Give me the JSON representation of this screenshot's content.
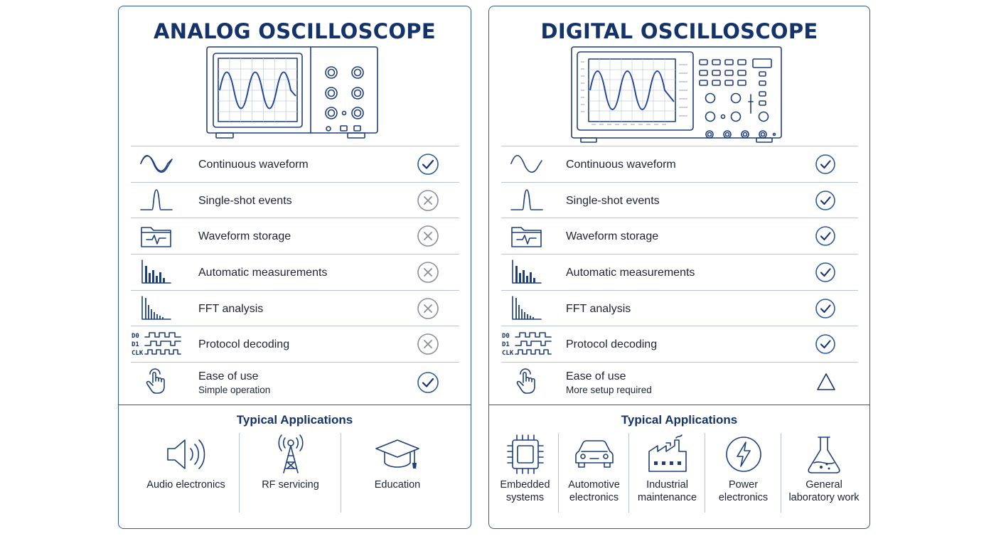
{
  "analog": {
    "title": "ANALOG OSCILLOSCOPE",
    "features": [
      {
        "label": "Continuous waveform",
        "sub": "",
        "status": "check",
        "icon": "sine-wave-icon"
      },
      {
        "label": "Single-shot events",
        "sub": "",
        "status": "cross",
        "icon": "single-pulse-icon"
      },
      {
        "label": "Waveform storage",
        "sub": "",
        "status": "cross",
        "icon": "folder-waveform-icon"
      },
      {
        "label": "Automatic measurements",
        "sub": "",
        "status": "cross",
        "icon": "bar-chart-icon"
      },
      {
        "label": "FFT analysis",
        "sub": "",
        "status": "cross",
        "icon": "spectrum-icon"
      },
      {
        "label": "Protocol decoding",
        "sub": "",
        "status": "cross",
        "icon": "digital-signals-icon"
      },
      {
        "label": "Ease of use",
        "sub": "Simple operation",
        "status": "check",
        "icon": "touch-hand-icon"
      }
    ],
    "apps_title": "Typical Applications",
    "apps": [
      {
        "label": "Audio electronics",
        "icon": "speaker-icon"
      },
      {
        "label": "RF servicing",
        "icon": "antenna-tower-icon"
      },
      {
        "label": "Education",
        "icon": "graduation-cap-icon"
      }
    ]
  },
  "digital": {
    "title": "DIGITAL OSCILLOSCOPE",
    "features": [
      {
        "label": "Continuous waveform",
        "sub": "",
        "status": "check",
        "icon": "sine-wave-icon"
      },
      {
        "label": "Single-shot events",
        "sub": "",
        "status": "check",
        "icon": "single-pulse-icon"
      },
      {
        "label": "Waveform storage",
        "sub": "",
        "status": "check",
        "icon": "folder-waveform-icon"
      },
      {
        "label": "Automatic measurements",
        "sub": "",
        "status": "check",
        "icon": "bar-chart-icon"
      },
      {
        "label": "FFT analysis",
        "sub": "",
        "status": "check",
        "icon": "spectrum-icon"
      },
      {
        "label": "Protocol decoding",
        "sub": "",
        "status": "check",
        "icon": "digital-signals-icon"
      },
      {
        "label": "Ease of use",
        "sub": "More setup required",
        "status": "warning",
        "icon": "touch-hand-icon"
      }
    ],
    "apps_title": "Typical Applications",
    "apps": [
      {
        "label": "Embedded systems",
        "icon": "chip-icon"
      },
      {
        "label": "Automotive electronics",
        "icon": "car-icon"
      },
      {
        "label": "Industrial maintenance",
        "icon": "factory-icon"
      },
      {
        "label": "Power electronics",
        "icon": "lightning-icon"
      },
      {
        "label": "General laboratory work",
        "icon": "flask-icon"
      }
    ]
  },
  "signal_labels": [
    "D0",
    "D1",
    "CLK"
  ],
  "colors": {
    "primary": "#15336b",
    "accent": "#2a5a9a",
    "divider": "#b9c4d4",
    "cross": "#8a8f98"
  }
}
